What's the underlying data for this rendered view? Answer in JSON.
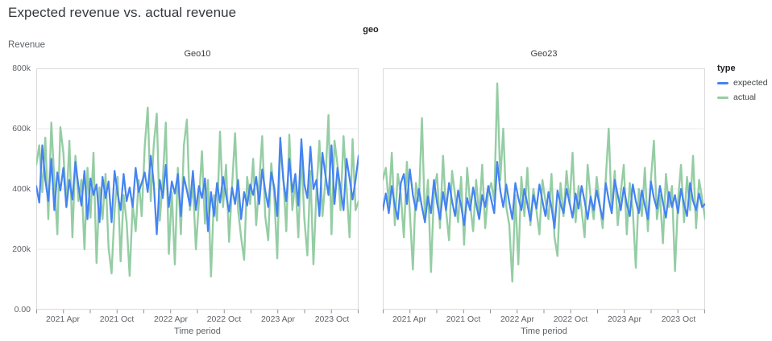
{
  "title": "Expected revenue vs. actual revenue",
  "facet_dimension_label": "geo",
  "y_axis": {
    "title": "Revenue",
    "ticks": [
      "800k",
      "600k",
      "400k",
      "200k",
      "0.00"
    ]
  },
  "x_axis": {
    "title": "Time period",
    "ticks": [
      "2021 Apr",
      "2021 Oct",
      "2022 Apr",
      "2022 Oct",
      "2023 Apr",
      "2023 Oct"
    ]
  },
  "legend": {
    "title": "type",
    "items": [
      {
        "label": "expected",
        "color": "#4483f2"
      },
      {
        "label": "actual",
        "color": "#95cda4"
      }
    ]
  },
  "colors": {
    "expected": "#4483f2",
    "actual": "#95cda4",
    "grid": "#e9e9e9",
    "border": "#d9dadc",
    "tick": "#8e9196"
  },
  "chart_data": [
    {
      "type": "line",
      "facet": "Geo10",
      "x_start": "2021-01",
      "x_end": "2023-12",
      "points_per_month": 3,
      "unit": "thousand",
      "ylim": [
        0,
        800
      ],
      "grid_values": [
        200,
        400,
        600
      ],
      "series": [
        {
          "name": "expected",
          "color": "#4483f2",
          "values": [
            410,
            355,
            545,
            430,
            360,
            500,
            330,
            455,
            395,
            470,
            340,
            430,
            365,
            490,
            410,
            345,
            460,
            300,
            435,
            380,
            415,
            290,
            440,
            370,
            425,
            290,
            460,
            385,
            330,
            450,
            360,
            405,
            340,
            470,
            390,
            420,
            455,
            390,
            510,
            420,
            250,
            430,
            370,
            480,
            340,
            425,
            385,
            450,
            310,
            440,
            395,
            345,
            460,
            330,
            410,
            370,
            435,
            260,
            390,
            310,
            420,
            355,
            440,
            380,
            325,
            405,
            350,
            430,
            300,
            390,
            345,
            415,
            380,
            440,
            350,
            465,
            395,
            340,
            455,
            405,
            310,
            570,
            430,
            360,
            500,
            390,
            450,
            345,
            565,
            415,
            370,
            540,
            400,
            430,
            310,
            520,
            445,
            380,
            545,
            350,
            470,
            400,
            330,
            500,
            435,
            365,
            430,
            510
          ]
        },
        {
          "name": "actual",
          "color": "#95cda4",
          "values": [
            480,
            545,
            390,
            570,
            300,
            620,
            430,
            250,
            605,
            520,
            340,
            560,
            240,
            510,
            360,
            430,
            200,
            470,
            305,
            520,
            155,
            405,
            300,
            450,
            205,
            120,
            330,
            440,
            160,
            380,
            290,
            112,
            350,
            260,
            430,
            310,
            540,
            670,
            360,
            545,
            650,
            295,
            430,
            620,
            185,
            390,
            150,
            470,
            250,
            545,
            630,
            330,
            415,
            200,
            360,
            525,
            285,
            430,
            110,
            380,
            295,
            590,
            340,
            480,
            225,
            410,
            585,
            330,
            240,
            165,
            440,
            350,
            500,
            280,
            420,
            575,
            310,
            230,
            485,
            380,
            170,
            545,
            440,
            260,
            580,
            330,
            430,
            240,
            520,
            300,
            180,
            460,
            150,
            390,
            560,
            310,
            430,
            645,
            250,
            560,
            480,
            330,
            575,
            405,
            240,
            565,
            330,
            360
          ]
        }
      ]
    },
    {
      "type": "line",
      "facet": "Geo23",
      "x_start": "2021-01",
      "x_end": "2023-12",
      "points_per_month": 3,
      "unit": "thousand",
      "ylim": [
        0,
        800
      ],
      "grid_values": [
        200,
        400,
        600
      ],
      "series": [
        {
          "name": "expected",
          "color": "#4483f2",
          "values": [
            330,
            385,
            320,
            410,
            345,
            300,
            420,
            450,
            350,
            465,
            380,
            330,
            400,
            340,
            290,
            375,
            320,
            430,
            355,
            300,
            390,
            330,
            420,
            360,
            310,
            395,
            345,
            280,
            370,
            330,
            405,
            350,
            300,
            380,
            340,
            410,
            365,
            320,
            490,
            395,
            340,
            415,
            355,
            300,
            420,
            370,
            330,
            400,
            350,
            295,
            380,
            335,
            415,
            360,
            310,
            390,
            340,
            270,
            395,
            350,
            320,
            400,
            355,
            305,
            385,
            335,
            410,
            360,
            300,
            375,
            330,
            395,
            345,
            300,
            420,
            365,
            320,
            430,
            380,
            330,
            405,
            350,
            310,
            415,
            360,
            320,
            395,
            345,
            300,
            425,
            370,
            335,
            410,
            355,
            305,
            390,
            340,
            380,
            320,
            400,
            350,
            310,
            420,
            360,
            330,
            385,
            340,
            350
          ]
        },
        {
          "name": "actual",
          "color": "#95cda4",
          "values": [
            430,
            470,
            350,
            520,
            280,
            450,
            380,
            240,
            490,
            320,
            133,
            420,
            360,
            635,
            290,
            430,
            125,
            390,
            450,
            270,
            510,
            330,
            230,
            460,
            380,
            290,
            440,
            215,
            470,
            350,
            260,
            430,
            310,
            480,
            270,
            390,
            420,
            360,
            750,
            430,
            600,
            340,
            280,
            93,
            380,
            150,
            440,
            310,
            470,
            280,
            400,
            330,
            250,
            430,
            360,
            300,
            450,
            240,
            178,
            420,
            310,
            460,
            350,
            520,
            290,
            410,
            330,
            240,
            480,
            370,
            300,
            440,
            350,
            270,
            430,
            600,
            320,
            460,
            280,
            390,
            480,
            250,
            420,
            330,
            139,
            400,
            310,
            470,
            260,
            430,
            560,
            300,
            380,
            220,
            450,
            340,
            410,
            128,
            360,
            480,
            290,
            440,
            330,
            510,
            270,
            430,
            370,
            300
          ]
        }
      ]
    }
  ]
}
